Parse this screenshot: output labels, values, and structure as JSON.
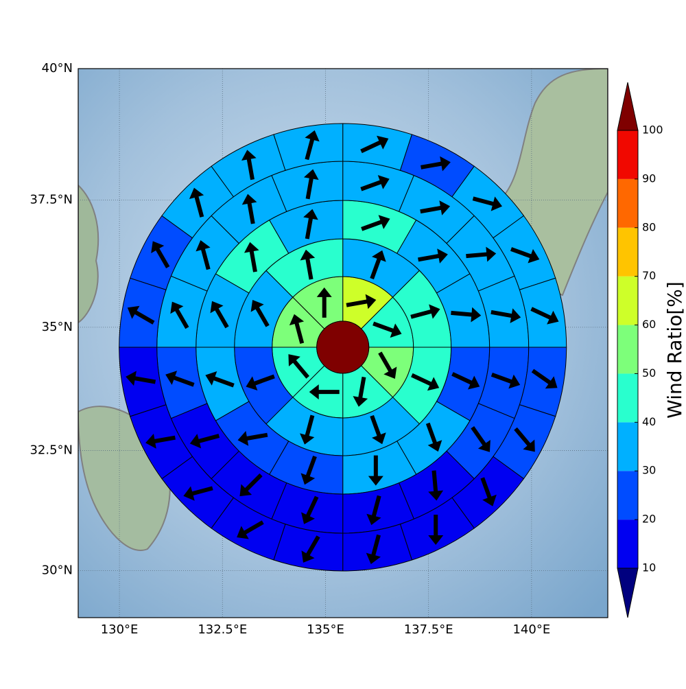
{
  "chart_data": {
    "type": "polar-sector-map",
    "xlim": [
      129,
      141.85
    ],
    "ylim": [
      29,
      40
    ],
    "xticks": [
      {
        "value": 130,
        "label": "130°E"
      },
      {
        "value": 132.5,
        "label": "132.5°E"
      },
      {
        "value": 135,
        "label": "135°E"
      },
      {
        "value": 137.5,
        "label": "137.5°E"
      },
      {
        "value": 140,
        "label": "140°E"
      }
    ],
    "yticks": [
      {
        "value": 30,
        "label": "30°N"
      },
      {
        "value": 32.5,
        "label": "32.5°N"
      },
      {
        "value": 35,
        "label": "35°N"
      },
      {
        "value": 37.5,
        "label": "37.5°N"
      },
      {
        "value": 40,
        "label": "40°N"
      }
    ],
    "grid": true,
    "center_lon": 135.42,
    "center_lat": 34.6,
    "center_value": 105,
    "rings": [
      {
        "values": [
          65,
          45,
          55,
          45,
          45,
          45,
          55,
          55
        ],
        "directions": [
          80,
          110,
          150,
          190,
          270,
          320,
          345,
          0
        ]
      },
      {
        "values": [
          35,
          45,
          45,
          35,
          35,
          25,
          35,
          45
        ],
        "directions": [
          20,
          75,
          115,
          160,
          195,
          250,
          330,
          350
        ]
      },
      {
        "values": [
          45,
          35,
          35,
          25,
          35,
          35,
          25,
          25,
          35,
          35,
          45,
          35
        ],
        "directions": [
          70,
          80,
          95,
          115,
          160,
          180,
          200,
          260,
          290,
          330,
          350,
          10
        ]
      },
      {
        "values": [
          35,
          35,
          35,
          35,
          25,
          25,
          15,
          15,
          15,
          15,
          15,
          25,
          35,
          35,
          35,
          35
        ],
        "directions": [
          70,
          80,
          85,
          100,
          110,
          145,
          175,
          195,
          205,
          225,
          255,
          290,
          330,
          345,
          350,
          10
        ]
      },
      {
        "values": [
          35,
          25,
          35,
          35,
          35,
          25,
          25,
          15,
          15,
          15,
          15,
          15,
          15,
          15,
          15,
          25,
          25,
          35,
          35,
          35
        ],
        "directions": [
          65,
          80,
          105,
          110,
          115,
          125,
          140,
          160,
          180,
          195,
          210,
          240,
          255,
          260,
          280,
          300,
          330,
          345,
          350,
          15
        ]
      }
    ],
    "colorbar": {
      "label": "Wind Ratio[%]",
      "ticks": [
        10,
        20,
        30,
        40,
        50,
        60,
        70,
        80,
        90,
        100
      ],
      "colors": [
        "#00007f",
        "#0000f1",
        "#004cff",
        "#00b0ff",
        "#29ffce",
        "#7dff7a",
        "#ceff29",
        "#ffc400",
        "#ff6800",
        "#f10800",
        "#7f0000"
      ],
      "extend": "both"
    }
  }
}
